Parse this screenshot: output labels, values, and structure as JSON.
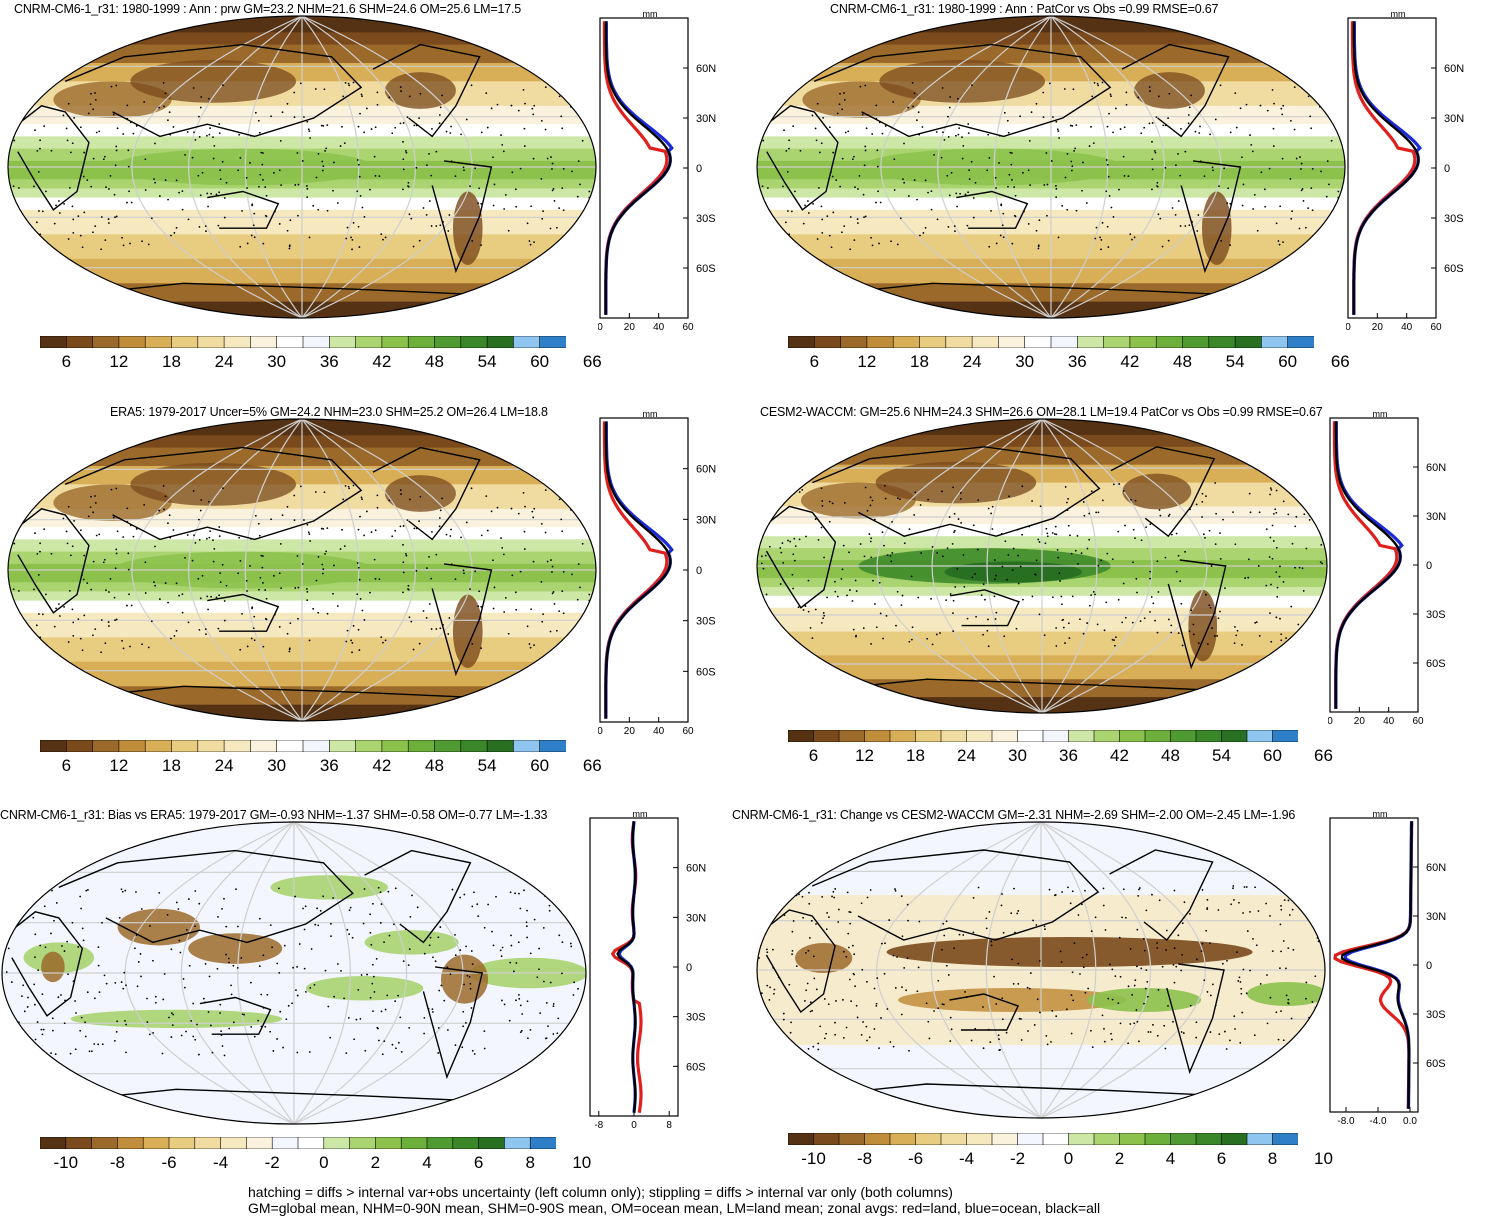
{
  "panels": [
    {
      "id": "p1",
      "title": "CNRM-CM6-1_r31: 1980-1999 : Ann : prw GM=23.2 NHM=21.6 SHM=24.6 OM=25.6 LM=17.5",
      "kind": "mean",
      "hatch": true
    },
    {
      "id": "p2",
      "title": "CNRM-CM6-1_r31: 1980-1999 : Ann : PatCor vs Obs =0.99 RMSE=0.67",
      "kind": "mean",
      "hatch": false
    },
    {
      "id": "p3",
      "title": "ERA5: 1979-2017 Uncer=5% GM=24.2 NHM=23.0 SHM=25.2 OM=26.4 LM=18.8",
      "kind": "mean",
      "hatch": true
    },
    {
      "id": "p4",
      "title": "CESM2-WACCM: GM=25.6 NHM=24.3 SHM=26.6 OM=28.1 LM=19.4 PatCor vs Obs =0.99 RMSE=0.67",
      "kind": "mean2",
      "hatch": false
    },
    {
      "id": "p5",
      "title": "CNRM-CM6-1_r31: Bias vs ERA5: 1979-2017 GM=-0.93 NHM=-1.37 SHM=-0.58 OM=-0.77 LM=-1.33",
      "kind": "bias",
      "hatch": true
    },
    {
      "id": "p6",
      "title": "CNRM-CM6-1_r31: Change vs CESM2-WACCM GM=-2.31 NHM=-2.69 SHM=-2.00 OM=-2.45 LM=-1.96",
      "kind": "change",
      "hatch": false
    }
  ],
  "zonal_unit": "mm",
  "lat_labels": [
    "60N",
    "30N",
    "0",
    "30S",
    "60S"
  ],
  "zonal_x_mean": [
    "0",
    "20",
    "40",
    "60"
  ],
  "zonal_x_bias": [
    "-8",
    "0",
    "8"
  ],
  "zonal_x_change": [
    "-8.0",
    "-4.0",
    "0.0"
  ],
  "cbar_mean_labels": [
    "6",
    "12",
    "18",
    "24",
    "30",
    "36",
    "42",
    "48",
    "54",
    "60",
    "66"
  ],
  "cbar_diff_labels": [
    "-10",
    "-8",
    "-6",
    "-4",
    "-2",
    "0",
    "2",
    "4",
    "6",
    "8",
    "10"
  ],
  "cbar_mean_colors": [
    "#553214",
    "#7a4a1c",
    "#9b6a2a",
    "#c08d3a",
    "#d8ae57",
    "#e8cc80",
    "#f0dca0",
    "#f6e9c0",
    "#faf2dc",
    "#ffffff",
    "#f3f6ff",
    "#cde7a6",
    "#a9d46f",
    "#8cc24c",
    "#6caf3a",
    "#4f9b31",
    "#3a8729",
    "#286f22",
    "#8ec6f0",
    "#2e7fc8"
  ],
  "cbar_diff_colors": [
    "#553214",
    "#7a4a1c",
    "#9b6a2a",
    "#c08d3a",
    "#d8ae57",
    "#e8cc80",
    "#f0dca0",
    "#f6e9c0",
    "#faf2dc",
    "#f3f6ff",
    "#ffffff",
    "#cde7a6",
    "#a9d46f",
    "#8cc24c",
    "#6caf3a",
    "#4f9b31",
    "#3a8729",
    "#286f22",
    "#8ec6f0",
    "#2e7fc8"
  ],
  "zonal_series": {
    "land_color": "#e0201c",
    "ocean_color": "#1a2ad8",
    "all_color": "#000000"
  },
  "footer": {
    "line1": "hatching = diffs > internal var+obs uncertainty (left column only); stippling = diffs > internal var only (both columns)",
    "line2": "GM=global mean, NHM=0-90N mean, SHM=0-90S mean, OM=ocean mean, LM=land mean; zonal avgs: red=land, blue=ocean, black=all"
  }
}
